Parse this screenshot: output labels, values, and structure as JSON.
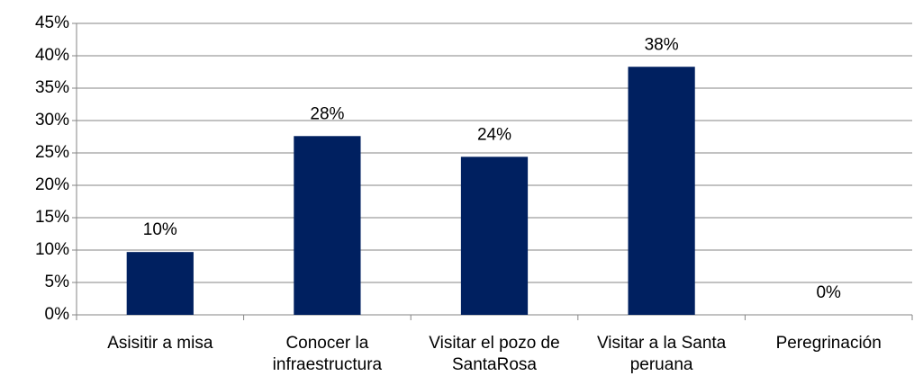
{
  "chart_data": {
    "type": "bar",
    "categories": [
      "Asisitir a misa",
      "Conocer la infraestructura",
      "Visitar el pozo de SantaRosa",
      "Visitar a la Santa peruana",
      "Peregrinación"
    ],
    "values": [
      9.7,
      27.6,
      24.4,
      38.3,
      0
    ],
    "value_labels": [
      "10%",
      "28%",
      "24%",
      "38%",
      "0%"
    ],
    "color": "#002060",
    "ylim": [
      0,
      45
    ],
    "yticks": [
      {
        "value": 0,
        "label": "0%"
      },
      {
        "value": 5,
        "label": "5%"
      },
      {
        "value": 10,
        "label": "10%"
      },
      {
        "value": 15,
        "label": "15%"
      },
      {
        "value": 20,
        "label": "20%"
      },
      {
        "value": 25,
        "label": "25%"
      },
      {
        "value": 30,
        "label": "30%"
      },
      {
        "value": 35,
        "label": "35%"
      },
      {
        "value": 40,
        "label": "40%"
      },
      {
        "value": 45,
        "label": "45%"
      }
    ],
    "grid": true
  }
}
